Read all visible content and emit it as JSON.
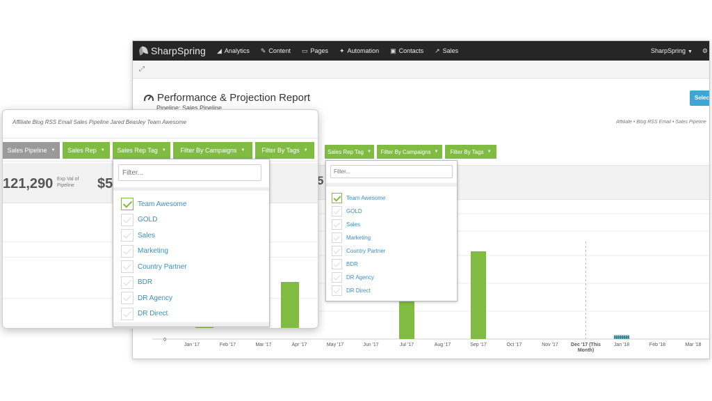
{
  "navbar": {
    "logo": "SharpSpring",
    "items": [
      {
        "label": "Analytics",
        "icon": "chart-icon",
        "glyph": "◢"
      },
      {
        "label": "Content",
        "icon": "pencil-icon",
        "glyph": "✎"
      },
      {
        "label": "Pages",
        "icon": "monitor-icon",
        "glyph": "▭"
      },
      {
        "label": "Automation",
        "icon": "wand-icon",
        "glyph": "✦"
      },
      {
        "label": "Contacts",
        "icon": "contacts-icon",
        "glyph": "▣"
      },
      {
        "label": "Sales",
        "icon": "trend-icon",
        "glyph": "↗"
      }
    ],
    "account": "SharpSpring",
    "gear_glyph": "⚙"
  },
  "report": {
    "title": "Performance & Projection Report",
    "pipeline": "Pipeline: Sales Pipeline",
    "select_label": "Select",
    "breadcrumbs": "Affiliate • Blog RSS Email • Sales Pipeline"
  },
  "front": {
    "breadcrumbs": "Affiliate  Blog RSS Email  Sales Pipeline  Jared Beasley  Team Awesome",
    "filters": [
      "Sales Pipeline",
      "Sales Rep",
      "Sales Rep Tag",
      "Filter By Campaigns",
      "Filter By Tags"
    ],
    "stat_value": "121,290",
    "stat_label": "Exp Val of Pipeline",
    "stat_value2": "$5"
  },
  "back_filters": [
    "Sales Rep Tag",
    "Filter By Campaigns",
    "Filter By Tags"
  ],
  "back_partial_stat": "5",
  "dropdown": {
    "placeholder": "Filter...",
    "items": [
      {
        "label": "Team Awesome",
        "checked": true
      },
      {
        "label": "GOLD",
        "checked": false
      },
      {
        "label": "Sales",
        "checked": false
      },
      {
        "label": "Marketing",
        "checked": false
      },
      {
        "label": "Country Partner",
        "checked": false
      },
      {
        "label": "BDR",
        "checked": false
      },
      {
        "label": "DR Agency",
        "checked": false
      },
      {
        "label": "DR Direct",
        "checked": false
      }
    ]
  },
  "colors": {
    "accent": "#80bc42",
    "pipeline_btn": "#9a9a9a",
    "link": "#3a8fc0",
    "select": "#3fa5d4"
  },
  "chart_data": {
    "type": "bar",
    "categories": [
      "Jan '17",
      "Feb '17",
      "Mar '17",
      "Apr '17",
      "May '17",
      "Jun '17",
      "Jul '17",
      "Aug '17",
      "Sep '17",
      "Oct '17",
      "Nov '17",
      "Dec '17 (This Month)",
      "Jan '18",
      "Feb '18",
      "Mar '18"
    ],
    "y_tick_labels": [
      "0"
    ],
    "ylim": [
      0,
      100
    ],
    "values": [
      0,
      0,
      0,
      0,
      0,
      0,
      62,
      0,
      70,
      0,
      0,
      0,
      3,
      0,
      0
    ],
    "current_month_index": 11,
    "projected_index": 12
  }
}
